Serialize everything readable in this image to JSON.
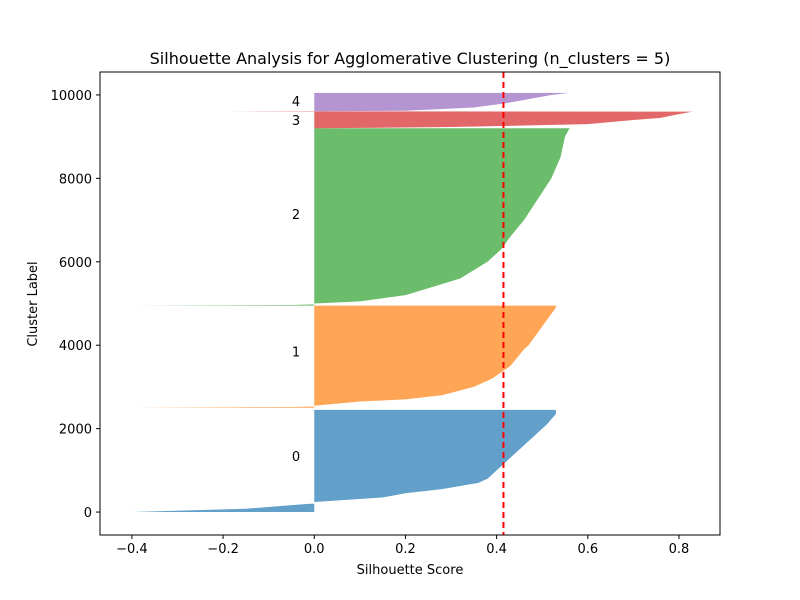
{
  "chart_data": {
    "type": "area",
    "title": "Silhouette Analysis for Agglomerative Clustering (n_clusters = 5)",
    "xlabel": "Silhouette Score",
    "ylabel": "Cluster Label",
    "xlim": [
      -0.47,
      0.89
    ],
    "ylim": [
      -550,
      10550
    ],
    "xticks": [
      -0.4,
      -0.2,
      0.0,
      0.2,
      0.4,
      0.6,
      0.8
    ],
    "xtick_labels": [
      "−0.4",
      "−0.2",
      "0.0",
      "0.2",
      "0.4",
      "0.6",
      "0.8"
    ],
    "yticks": [
      0,
      2000,
      4000,
      6000,
      8000,
      10000
    ],
    "ytick_labels": [
      "0",
      "2000",
      "4000",
      "6000",
      "8000",
      "10000"
    ],
    "grid": false,
    "average_silhouette_score": 0.415,
    "average_line_color": "#ff0000",
    "clusters": [
      {
        "label": "0",
        "color": "#1f77b4",
        "y_start": 0,
        "y_end": 2450,
        "label_y": 1340,
        "profile": [
          [
            0,
            -0.4
          ],
          [
            80,
            -0.15
          ],
          [
            200,
            -0.01
          ],
          [
            200,
            0.0
          ],
          [
            240,
            0.0
          ],
          [
            350,
            0.15
          ],
          [
            450,
            0.2
          ],
          [
            550,
            0.28
          ],
          [
            700,
            0.36
          ],
          [
            800,
            0.38
          ],
          [
            1000,
            0.4
          ],
          [
            1200,
            0.42
          ],
          [
            1500,
            0.45
          ],
          [
            1800,
            0.48
          ],
          [
            2100,
            0.51
          ],
          [
            2350,
            0.53
          ],
          [
            2450,
            0.53
          ]
        ]
      },
      {
        "label": "1",
        "color": "#ff7f0e",
        "y_start": 2500,
        "y_end": 4950,
        "label_y": 3850,
        "profile": [
          [
            2500,
            -0.4
          ],
          [
            2520,
            -0.05
          ],
          [
            2530,
            0.0
          ],
          [
            2550,
            0.0
          ],
          [
            2650,
            0.1
          ],
          [
            2700,
            0.2
          ],
          [
            2800,
            0.28
          ],
          [
            3000,
            0.35
          ],
          [
            3200,
            0.39
          ],
          [
            3500,
            0.43
          ],
          [
            3900,
            0.46
          ],
          [
            4000,
            0.47
          ],
          [
            4300,
            0.49
          ],
          [
            4600,
            0.51
          ],
          [
            4900,
            0.53
          ],
          [
            4950,
            0.53
          ]
        ]
      },
      {
        "label": "2",
        "color": "#2ca02c",
        "y_start": 5000,
        "y_end": 9200,
        "label_y": 7150,
        "profile": [
          [
            4950,
            -0.4
          ],
          [
            4965,
            -0.05
          ],
          [
            4980,
            0.0
          ],
          [
            5000,
            0.0
          ],
          [
            5050,
            0.1
          ],
          [
            5200,
            0.2
          ],
          [
            5400,
            0.26
          ],
          [
            5600,
            0.32
          ],
          [
            6000,
            0.38
          ],
          [
            6300,
            0.41
          ],
          [
            6600,
            0.43
          ],
          [
            7000,
            0.46
          ],
          [
            7500,
            0.49
          ],
          [
            8000,
            0.52
          ],
          [
            8500,
            0.54
          ],
          [
            9000,
            0.55
          ],
          [
            9200,
            0.56
          ]
        ]
      },
      {
        "label": "3",
        "color": "#d62728",
        "y_start": 9200,
        "y_end": 9600,
        "label_y": 9400,
        "profile": [
          [
            9200,
            0.0
          ],
          [
            9230,
            0.3
          ],
          [
            9300,
            0.6
          ],
          [
            9400,
            0.7
          ],
          [
            9450,
            0.76
          ],
          [
            9520,
            0.79
          ],
          [
            9600,
            0.83
          ],
          [
            9610,
            -0.2
          ],
          [
            9615,
            0.0
          ]
        ]
      },
      {
        "label": "4",
        "color": "#9467bd",
        "y_start": 9600,
        "y_end": 10050,
        "label_y": 9850,
        "profile": [
          [
            9610,
            0.0
          ],
          [
            9620,
            0.2
          ],
          [
            9700,
            0.35
          ],
          [
            9800,
            0.42
          ],
          [
            9900,
            0.47
          ],
          [
            10000,
            0.52
          ],
          [
            10050,
            0.56
          ]
        ]
      }
    ]
  }
}
